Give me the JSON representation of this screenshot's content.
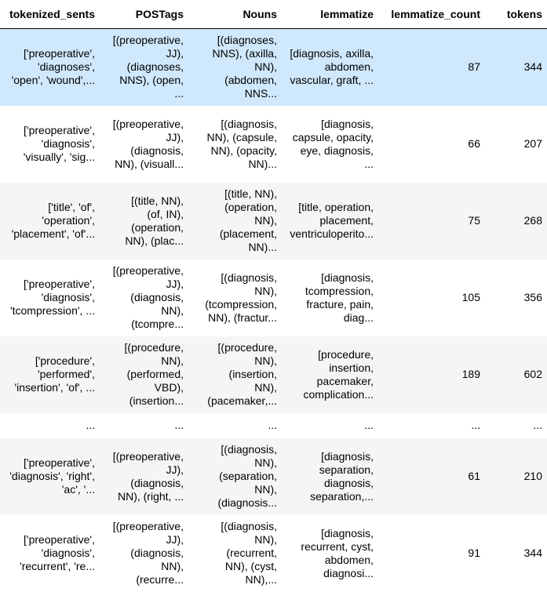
{
  "columns": [
    "tokenized_sents",
    "POSTags",
    "Nouns",
    "lemmatize",
    "lemmatize_count",
    "tokens"
  ],
  "rows": [
    {
      "tokenized_sents": "['preoperative',\n'diagnoses',\n'open', 'wound',...",
      "POSTags": "[(preoperative,\nJJ),\n(diagnoses,\nNNS), (open,\n...",
      "Nouns": "[(diagnoses,\nNNS), (axilla,\nNN),\n(abdomen,\nNNS...",
      "lemmatize": "[diagnosis, axilla,\nabdomen,\nvascular, graft, ...",
      "lemmatize_count": "87",
      "tokens": "344"
    },
    {
      "tokenized_sents": "['preoperative',\n'diagnosis',\n'visually', 'sig...",
      "POSTags": "[(preoperative,\nJJ),\n(diagnosis,\nNN), (visuall...",
      "Nouns": "[(diagnosis,\nNN), (capsule,\nNN), (opacity,\nNN)...",
      "lemmatize": "[diagnosis,\ncapsule, opacity,\neye, diagnosis,\n...",
      "lemmatize_count": "66",
      "tokens": "207"
    },
    {
      "tokenized_sents": "['title', 'of',\n'operation',\n'placement', 'of'...",
      "POSTags": "[(title, NN),\n(of, IN),\n(operation,\nNN), (plac...",
      "Nouns": "[(title, NN),\n(operation,\nNN),\n(placement,\nNN)...",
      "lemmatize": "[title, operation,\nplacement,\nventriculoperito...",
      "lemmatize_count": "75",
      "tokens": "268"
    },
    {
      "tokenized_sents": "['preoperative',\n'diagnosis',\n'tcompression', ...",
      "POSTags": "[(preoperative,\nJJ),\n(diagnosis,\nNN),\n(tcompre...",
      "Nouns": "[(diagnosis,\nNN),\n(tcompression,\nNN), (fractur...",
      "lemmatize": "[diagnosis,\ntcompression,\nfracture, pain,\ndiag...",
      "lemmatize_count": "105",
      "tokens": "356"
    },
    {
      "tokenized_sents": "['procedure',\n'performed',\n'insertion', 'of', ...",
      "POSTags": "[(procedure,\nNN),\n(performed,\nVBD),\n(insertion...",
      "Nouns": "[(procedure,\nNN),\n(insertion,\nNN),\n(pacemaker,...",
      "lemmatize": "[procedure,\ninsertion,\npacemaker,\ncomplication...",
      "lemmatize_count": "189",
      "tokens": "602"
    },
    {
      "tokenized_sents": "...",
      "POSTags": "...",
      "Nouns": "...",
      "lemmatize": "...",
      "lemmatize_count": "...",
      "tokens": "..."
    },
    {
      "tokenized_sents": "['preoperative',\n'diagnosis', 'right',\n'ac', '...",
      "POSTags": "[(preoperative,\nJJ),\n(diagnosis,\nNN), (right, ...",
      "Nouns": "[(diagnosis,\nNN),\n(separation,\nNN),\n(diagnosis...",
      "lemmatize": "[diagnosis,\nseparation,\ndiagnosis,\nseparation,...",
      "lemmatize_count": "61",
      "tokens": "210"
    },
    {
      "tokenized_sents": "['preoperative',\n'diagnosis',\n'recurrent', 're...",
      "POSTags": "[(preoperative,\nJJ),\n(diagnosis,\nNN),\n(recurre...",
      "Nouns": "[(diagnosis,\nNN),\n(recurrent,\nNN), (cyst,\nNN),...",
      "lemmatize": "[diagnosis,\nrecurrent, cyst,\nabdomen,\ndiagnosi...",
      "lemmatize_count": "91",
      "tokens": "344"
    }
  ]
}
